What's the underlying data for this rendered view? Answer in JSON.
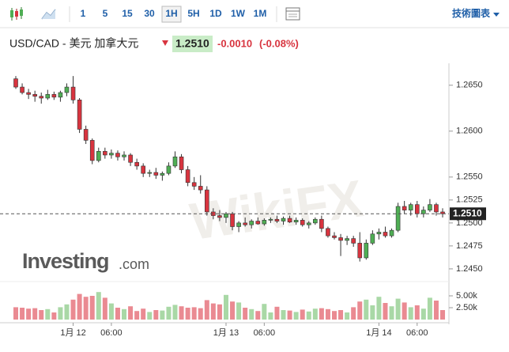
{
  "toolbar": {
    "intervals": [
      "1",
      "5",
      "15",
      "30",
      "1H",
      "5H",
      "1D",
      "1W",
      "1M"
    ],
    "selected_interval": 4,
    "tech_chart": "技術圖表"
  },
  "header": {
    "symbol": "USD/CAD - 美元 加拿大元",
    "change": "-0.0010",
    "change_pct": "(-0.08%)"
  },
  "watermark": "WikiFX",
  "logo_name": "Investing",
  "logo_suffix": ".com",
  "chart_data": {
    "type": "candlestick",
    "categories": [
      null,
      null,
      null,
      null,
      null,
      null,
      null,
      null,
      null,
      "1月 12",
      null,
      null,
      null,
      null,
      null,
      "06:00",
      null,
      null,
      null,
      null,
      null,
      null,
      null,
      null,
      null,
      null,
      null,
      null,
      null,
      null,
      null,
      null,
      null,
      "1月 13",
      null,
      null,
      null,
      null,
      null,
      "06:00",
      null,
      null,
      null,
      null,
      null,
      null,
      null,
      null,
      null,
      null,
      null,
      null,
      null,
      null,
      null,
      null,
      null,
      "1月 14",
      null,
      null,
      null,
      null,
      null,
      "06:00",
      null,
      null,
      null,
      null
    ],
    "open": [
      1.2657,
      1.2648,
      1.2642,
      1.264,
      1.2638,
      1.2636,
      1.264,
      1.2637,
      1.2642,
      1.2648,
      1.2634,
      1.2602,
      1.259,
      1.2568,
      1.2578,
      1.2574,
      1.2576,
      1.2572,
      1.2574,
      1.2566,
      1.2562,
      1.2554,
      1.2555,
      1.2552,
      1.2554,
      1.2562,
      1.2572,
      1.2558,
      1.2544,
      1.254,
      1.2536,
      1.2512,
      1.2508,
      1.2506,
      1.251,
      1.2496,
      1.25,
      1.2498,
      1.2502,
      1.2499,
      1.2503,
      1.2504,
      1.2502,
      1.2505,
      1.2501,
      1.2503,
      1.2498,
      1.25,
      1.2504,
      1.2494,
      1.2486,
      1.2484,
      1.2481,
      1.2483,
      1.2478,
      1.2462,
      1.2478,
      1.2488,
      1.249,
      1.2486,
      1.2492,
      1.2518,
      1.2514,
      1.252,
      1.251,
      1.2514,
      1.252,
      1.2512
    ],
    "high": [
      1.266,
      1.2652,
      1.2646,
      1.2644,
      1.2642,
      1.2645,
      1.2643,
      1.2644,
      1.2652,
      1.266,
      1.2636,
      1.2606,
      1.2592,
      1.2582,
      1.2582,
      1.258,
      1.2579,
      1.2578,
      1.2576,
      1.257,
      1.2565,
      1.2558,
      1.256,
      1.2556,
      1.2566,
      1.2578,
      1.2575,
      1.2562,
      1.255,
      1.2552,
      1.254,
      1.2516,
      1.2514,
      1.2512,
      1.2512,
      1.2502,
      1.2506,
      1.2504,
      1.2506,
      1.2505,
      1.2506,
      1.2508,
      1.2507,
      1.2508,
      1.2506,
      1.2505,
      1.2502,
      1.2506,
      1.2508,
      1.2496,
      1.249,
      1.2488,
      1.2486,
      1.2486,
      1.249,
      1.2482,
      1.2492,
      1.2494,
      1.2496,
      1.2494,
      1.2522,
      1.2524,
      1.2522,
      1.2524,
      1.2518,
      1.2526,
      1.2522,
      1.2516
    ],
    "low": [
      1.2646,
      1.264,
      1.2635,
      1.2632,
      1.263,
      1.2634,
      1.2634,
      1.2632,
      1.2638,
      1.263,
      1.2598,
      1.2586,
      1.2564,
      1.2566,
      1.257,
      1.257,
      1.2568,
      1.2568,
      1.2562,
      1.2558,
      1.255,
      1.255,
      1.2548,
      1.2546,
      1.2552,
      1.256,
      1.2554,
      1.254,
      1.2536,
      1.2532,
      1.2508,
      1.2504,
      1.2502,
      1.25,
      1.2492,
      1.249,
      1.2496,
      1.2494,
      1.2498,
      1.2497,
      1.25,
      1.25,
      1.2498,
      1.25,
      1.2498,
      1.2496,
      1.2494,
      1.2498,
      1.249,
      1.2484,
      1.2482,
      1.2464,
      1.2476,
      1.2474,
      1.2458,
      1.246,
      1.2476,
      1.2482,
      1.2484,
      1.2484,
      1.249,
      1.251,
      1.2508,
      1.2506,
      1.2506,
      1.2512,
      1.2508,
      1.2506
    ],
    "close": [
      1.2648,
      1.2642,
      1.264,
      1.2638,
      1.2636,
      1.264,
      1.2637,
      1.2642,
      1.2648,
      1.2634,
      1.2602,
      1.259,
      1.2568,
      1.2578,
      1.2574,
      1.2576,
      1.2572,
      1.2574,
      1.2566,
      1.2562,
      1.2554,
      1.2555,
      1.2552,
      1.2554,
      1.2562,
      1.2572,
      1.2558,
      1.2544,
      1.254,
      1.2536,
      1.2512,
      1.2508,
      1.2506,
      1.251,
      1.2496,
      1.25,
      1.2498,
      1.2502,
      1.2499,
      1.2503,
      1.2504,
      1.2502,
      1.2505,
      1.2501,
      1.2503,
      1.2498,
      1.25,
      1.2504,
      1.2494,
      1.2486,
      1.2484,
      1.2481,
      1.2483,
      1.2478,
      1.2462,
      1.2478,
      1.2488,
      1.249,
      1.2486,
      1.2492,
      1.2518,
      1.2514,
      1.252,
      1.251,
      1.2514,
      1.252,
      1.2512,
      1.251
    ],
    "volume": [
      2600,
      2500,
      2300,
      2400,
      2000,
      2200,
      1500,
      2600,
      3200,
      4200,
      5400,
      4800,
      5000,
      5800,
      4600,
      3400,
      2500,
      2200,
      2800,
      1800,
      2300,
      1600,
      2000,
      1900,
      2700,
      3100,
      2800,
      2500,
      2600,
      2400,
      4100,
      3400,
      3200,
      5200,
      3800,
      3600,
      2500,
      2200,
      1800,
      3300,
      1500,
      2700,
      2000,
      1900,
      1600,
      2100,
      1700,
      2300,
      2400,
      2200,
      1800,
      2000,
      1500,
      2600,
      3800,
      4200,
      3000,
      4800,
      3500,
      2800,
      4400,
      3600,
      2600,
      3000,
      2300,
      4600,
      4000,
      2000
    ],
    "ylim": [
      1.2437,
      1.2667
    ],
    "yticks": [
      {
        "value": 1.245,
        "label": "1.2450"
      },
      {
        "value": 1.2475,
        "label": "1.2475"
      },
      {
        "value": 1.25,
        "label": "1.2500"
      },
      {
        "value": 1.2525,
        "label": "1.2525"
      },
      {
        "value": 1.255,
        "label": "1.2550"
      },
      {
        "value": 1.26,
        "label": "1.2600"
      },
      {
        "value": 1.265,
        "label": "1.2650"
      }
    ],
    "volume_ylim": [
      0,
      8000
    ],
    "volume_yticks": [
      {
        "value": 2500,
        "label": "2.50k"
      },
      {
        "value": 5000,
        "label": "5.00k"
      }
    ],
    "last_price": {
      "value": 1.251,
      "label": "1.2510"
    },
    "up_color": "#4fae54",
    "down_color": "#d8343f",
    "volume_up_color": "#a9d8a6",
    "volume_down_color": "#ea8a92"
  }
}
